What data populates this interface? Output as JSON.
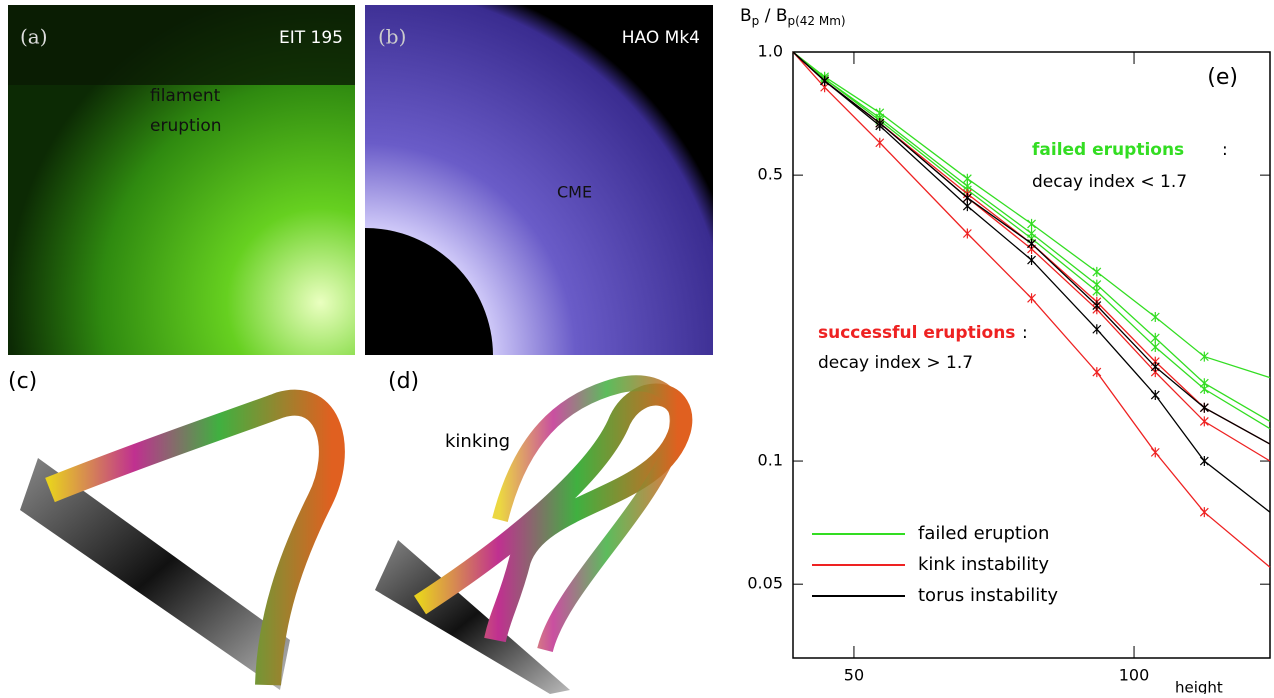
{
  "panels": [
    {
      "label": "(a)",
      "caption": "EIT 195",
      "annotation": [
        "filament",
        "eruption"
      ]
    },
    {
      "label": "(b)",
      "caption": "HAO Mk4",
      "annotation": [
        "CME"
      ]
    },
    {
      "label": "(c)"
    },
    {
      "label": "(d)",
      "annotation": [
        "kinking"
      ]
    }
  ],
  "chart_data": {
    "type": "line",
    "panel_label": "(e)",
    "y_label": {
      "main1": "B",
      "sub1": "p",
      "main2": " / B",
      "sub2": "p(42 Mm)"
    },
    "x_label": "height",
    "x": [
      43,
      46.5,
      53.3,
      66.2,
      77.6,
      91.2,
      105.4,
      119,
      140
    ],
    "xlim": [
      43,
      140
    ],
    "xticks": [
      50,
      100
    ],
    "log_x": true,
    "ylim": [
      0.033,
      1.0
    ],
    "yticks": [
      0.05,
      0.1,
      0.5,
      {
        "value": 1,
        "label": "1.0"
      }
    ],
    "log_y": true,
    "series": [
      {
        "name": "failed eruption",
        "color": "#33dd22",
        "values": [
          1,
          0.87,
          0.71,
          0.49,
          0.38,
          0.29,
          0.225,
          0.18,
          0.16
        ]
      },
      {
        "name": "failed eruption",
        "color": "#33dd22",
        "values": [
          1,
          0.86,
          0.69,
          0.47,
          0.36,
          0.27,
          0.2,
          0.155,
          0.125
        ]
      },
      {
        "name": "failed eruption",
        "color": "#33dd22",
        "values": [
          1,
          0.86,
          0.68,
          0.46,
          0.35,
          0.26,
          0.19,
          0.15,
          0.12
        ]
      },
      {
        "name": "kink instability",
        "color": "#ee2222",
        "values": [
          1,
          0.82,
          0.6,
          0.36,
          0.25,
          0.165,
          0.105,
          0.075,
          0.055
        ]
      },
      {
        "name": "kink instability",
        "color": "#ee2222",
        "values": [
          1,
          0.85,
          0.67,
          0.44,
          0.33,
          0.235,
          0.165,
          0.125,
          0.1
        ]
      },
      {
        "name": "kink instability",
        "color": "#ee2222",
        "values": [
          1,
          0.85,
          0.67,
          0.45,
          0.34,
          0.245,
          0.175,
          0.135,
          0.11
        ]
      },
      {
        "name": "torus instability",
        "color": "#000000",
        "values": [
          1,
          0.85,
          0.66,
          0.42,
          0.31,
          0.21,
          0.145,
          0.1,
          0.075
        ]
      },
      {
        "name": "torus instability",
        "color": "#000000",
        "values": [
          1,
          0.85,
          0.67,
          0.44,
          0.34,
          0.24,
          0.17,
          0.135,
          0.11
        ]
      }
    ],
    "annotations": [
      {
        "text": "failed eruptions",
        "color": "#33dd22"
      },
      {
        "text": ":",
        "color": "#000000"
      },
      {
        "text": "decay index < 1.7",
        "color": "#000000"
      },
      {
        "text": "successful eruptions",
        "color": "#ee2222"
      },
      {
        "text": ":",
        "color": "#000000"
      },
      {
        "text": "decay index > 1.7",
        "color": "#000000"
      }
    ]
  }
}
